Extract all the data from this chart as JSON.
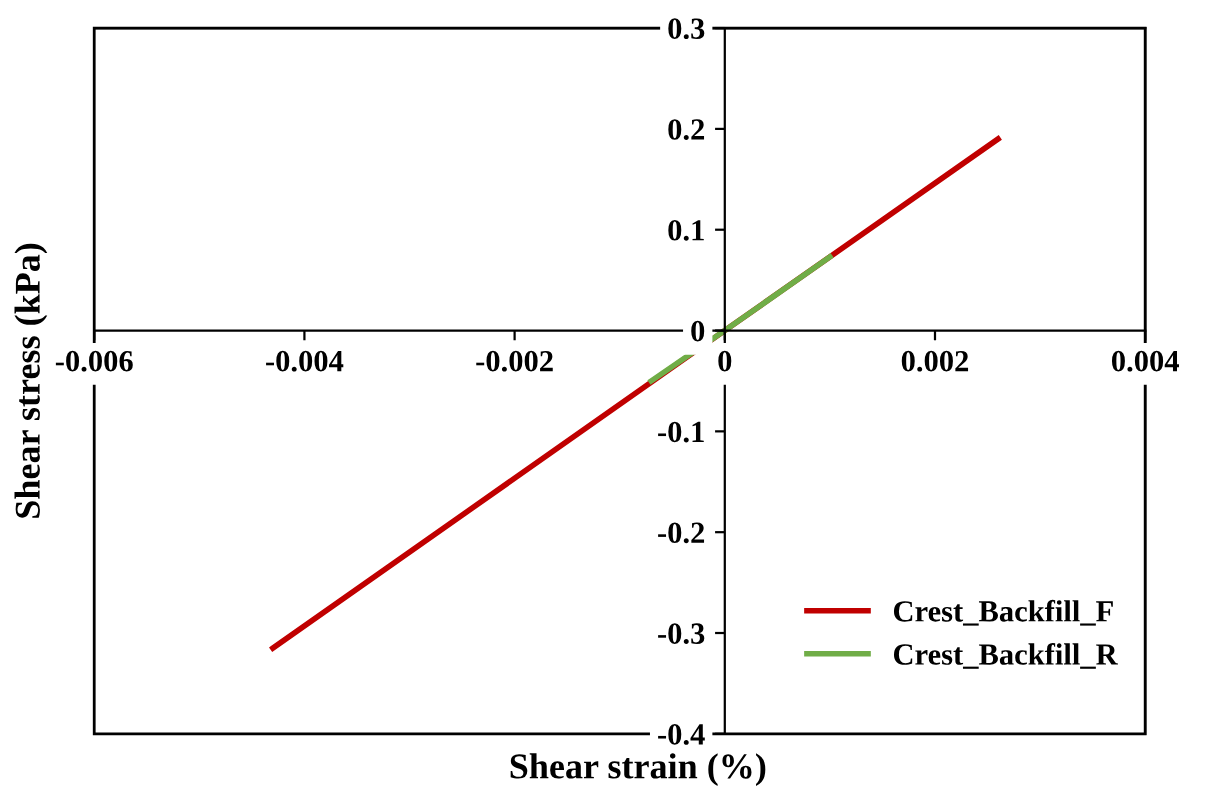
{
  "chart_data": {
    "type": "line",
    "xlabel": "Shear strain (%)",
    "ylabel": "Shear stress (kPa)",
    "xlim": [
      -0.006,
      0.004
    ],
    "xticks": [
      -0.006,
      -0.004,
      -0.002,
      0,
      0.002,
      0.004
    ],
    "ylim": [
      -0.4,
      0.3
    ],
    "yticks": [
      -0.4,
      -0.3,
      -0.2,
      -0.1,
      0,
      0.1,
      0.2,
      0.3
    ],
    "series": [
      {
        "name": "Crest_Backfill_F",
        "color": "#c00000",
        "x": [
          -0.0043,
          0,
          0.0026
        ],
        "values": [
          -0.315,
          0,
          0.19
        ]
      },
      {
        "name": "Crest_Backfill_R",
        "color": "#70ad47",
        "x": [
          -0.0007,
          0,
          0.001
        ],
        "values": [
          -0.05,
          0,
          0.073
        ]
      }
    ],
    "legend": "bottom right",
    "grid": false,
    "marker": "none",
    "line_style": "solid"
  }
}
